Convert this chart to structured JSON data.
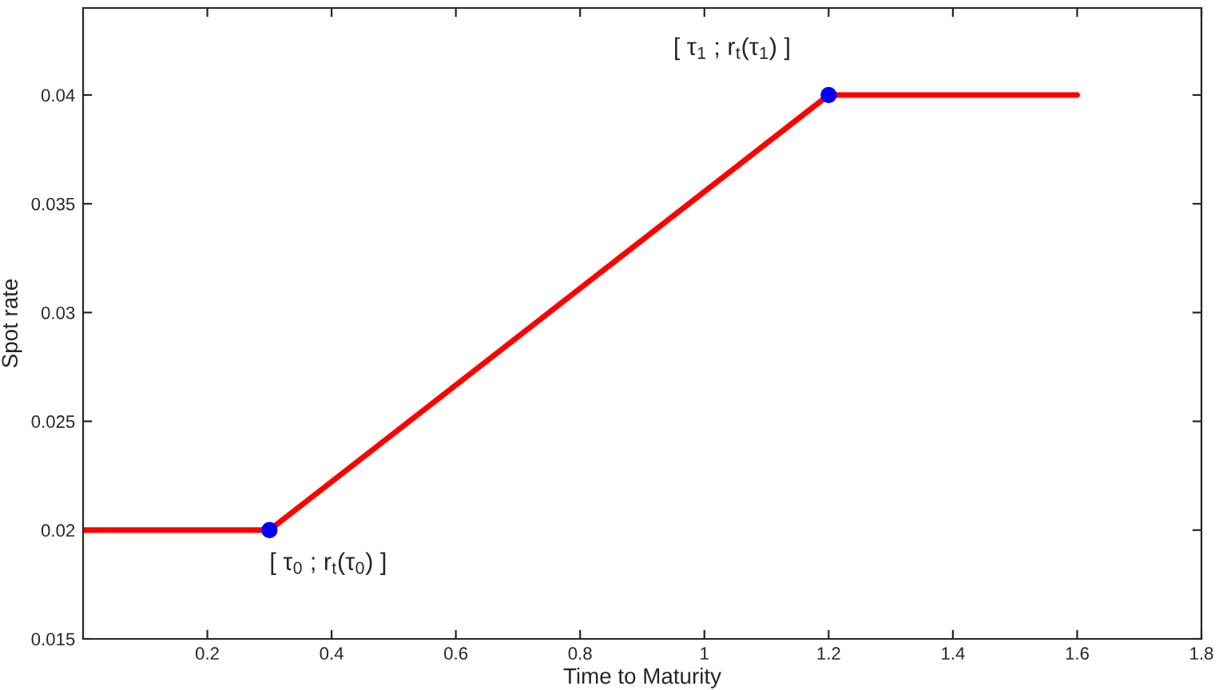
{
  "chart_data": {
    "type": "line",
    "xlabel": "Time to Maturity",
    "ylabel": "Spot rate",
    "series": [
      {
        "color": "#ff0000",
        "x": [
          0,
          0.3,
          1.2,
          1.6
        ],
        "values": [
          0.02,
          0.02,
          0.04,
          0.04
        ],
        "marker": "none"
      },
      {
        "type": "scatter",
        "color": "#0000ff",
        "x": [
          0.3,
          1.2
        ],
        "values": [
          0.02,
          0.04
        ],
        "marker": "circle"
      }
    ],
    "xlim": [
      0,
      1.8
    ],
    "xticks": [
      0.2,
      0.4,
      0.6,
      0.8,
      1,
      1.2,
      1.4,
      1.6,
      1.8
    ],
    "ylim": [
      0.015,
      0.044
    ],
    "yticks": [
      0.015,
      0.02,
      0.025,
      0.03,
      0.035,
      0.04
    ],
    "annotations": [
      {
        "text": "[ τ$_{0}$ ; r$_{t}$(τ$_{0}$) ]",
        "x": 0.3,
        "y": 0.02
      },
      {
        "text": "[ τ$_{1}$ ; r$_{t}$(τ$_{1}$) ]",
        "x": 1.2,
        "y": 0.04
      }
    ],
    "grid": false,
    "legend": false
  }
}
